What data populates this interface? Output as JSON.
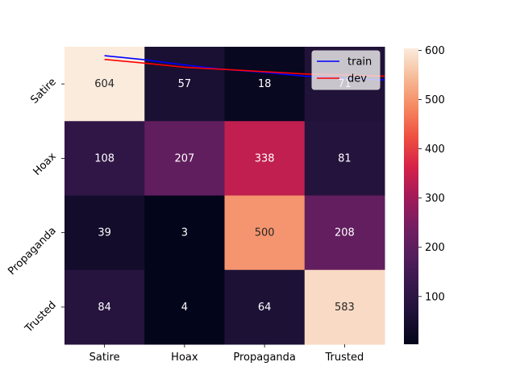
{
  "chart_data": {
    "type": "heatmap",
    "title": "",
    "xlabel": "",
    "ylabel": "",
    "rows": [
      "Satire",
      "Hoax",
      "Propaganda",
      "Trusted"
    ],
    "columns": [
      "Satire",
      "Hoax",
      "Propaganda",
      "Trusted"
    ],
    "values": [
      [
        604,
        57,
        18,
        71
      ],
      [
        108,
        207,
        338,
        81
      ],
      [
        39,
        3,
        500,
        208
      ],
      [
        84,
        4,
        64,
        583
      ]
    ],
    "colorbar": {
      "min": 3,
      "max": 604,
      "ticks": [
        100,
        200,
        300,
        400,
        500,
        600
      ],
      "colormap": "rocket"
    },
    "overlay_lines": {
      "legend_position": "top-right",
      "x": [
        0.5,
        1.0,
        1.5,
        2.0,
        2.5,
        3.0,
        3.5,
        4.0
      ],
      "series": [
        {
          "name": "train",
          "color": "#0000ff",
          "values": [
            0.12,
            0.175,
            0.245,
            0.305,
            0.345,
            0.395,
            0.425,
            0.445
          ]
        },
        {
          "name": "dev",
          "color": "#ff0000",
          "values": [
            0.17,
            0.22,
            0.275,
            0.305,
            0.335,
            0.365,
            0.38,
            0.395
          ]
        }
      ]
    }
  }
}
